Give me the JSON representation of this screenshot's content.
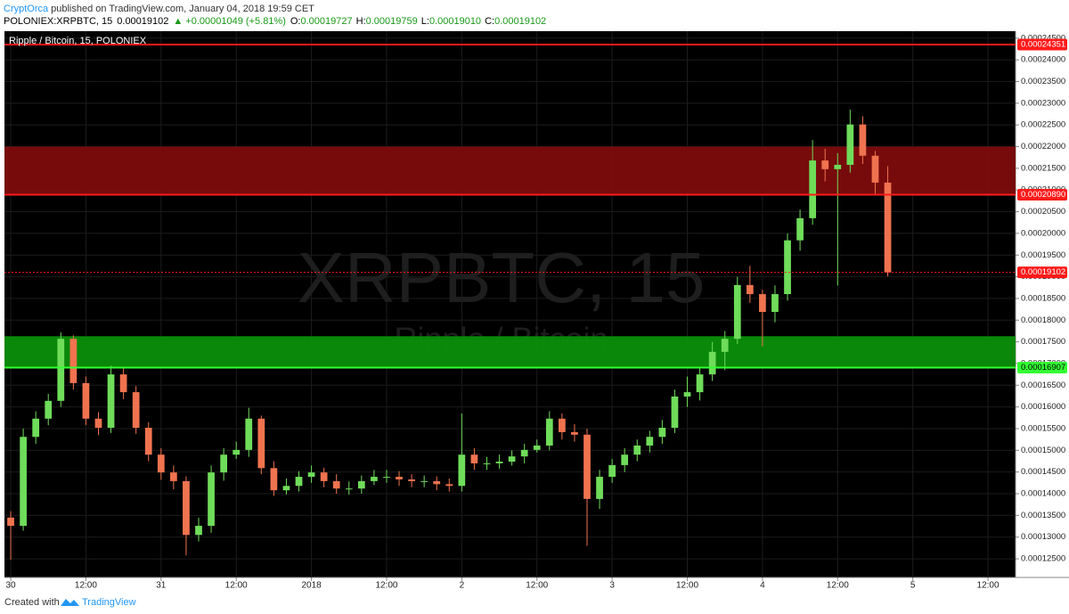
{
  "header": {
    "author": "CryptOrca",
    "published": "published on TradingView.com, January 04, 2018 19:59 CET"
  },
  "quote": {
    "symbol": "POLONIEX:XRPBTC, 15",
    "last": "0.00019102",
    "change": "▲ +0.00001049 (+5.81%)",
    "ohlc": [
      [
        "O:",
        "0.00019727"
      ],
      [
        "H:",
        "0.00019759"
      ],
      [
        "L:",
        "0.00019010"
      ],
      [
        "C:",
        "0.00019102"
      ]
    ]
  },
  "footer": {
    "created": "Created with",
    "brand": "TradingView"
  },
  "chart_data": {
    "type": "candlestick",
    "title": "Ripple / Bitcoin, 15, POLONIEX",
    "watermark": [
      "XRPBTC, 15",
      "Ripple / Bitcoin"
    ],
    "up_color": "#6fdc5a",
    "down_color": "#f0734f",
    "x": [
      0,
      2,
      4,
      6,
      8,
      10,
      12,
      14,
      16,
      18,
      20,
      22,
      24,
      26,
      28,
      30,
      32,
      34,
      36,
      38,
      40,
      42,
      44,
      46,
      48,
      50,
      52,
      54,
      56,
      58,
      60,
      62,
      64,
      66,
      68,
      70,
      72,
      74,
      76,
      78,
      80,
      82,
      84,
      86,
      88,
      90,
      92,
      94,
      96,
      98,
      100,
      102,
      104,
      106,
      108,
      110,
      112,
      114,
      116,
      118,
      120,
      122,
      124,
      126,
      128,
      130,
      132,
      134,
      136,
      138,
      140
    ],
    "open": [
      0.0001345,
      0.0001326,
      0.0001531,
      0.0001573,
      0.0001614,
      0.0001757,
      0.0001655,
      0.0001573,
      0.0001552,
      0.0001675,
      0.0001634,
      0.0001552,
      0.000149,
      0.0001449,
      0.0001429,
      0.0001305,
      0.0001326,
      0.0001449,
      0.000149,
      0.0001501,
      0.0001573,
      0.0001459,
      0.0001408,
      0.0001418,
      0.0001439,
      0.0001449,
      0.0001429,
      0.0001412,
      0.0001412,
      0.0001429,
      0.0001439,
      0.0001439,
      0.0001433,
      0.0001429,
      0.0001429,
      0.0001422,
      0.0001418,
      0.000149,
      0.000147,
      0.000147,
      0.0001474,
      0.0001486,
      0.0001501,
      0.0001511,
      0.0001573,
      0.0001542,
      0.0001536,
      0.0001388,
      0.0001439,
      0.0001466,
      0.000149,
      0.0001511,
      0.0001531,
      0.0001552,
      0.0001624,
      0.0001634,
      0.0001675,
      0.0001727,
      0.0001757,
      0.0001881,
      0.000186,
      0.0001819,
      0.000186,
      0.0001984,
      0.0002035,
      0.0002168,
      0.0002148,
      0.0002158,
      0.0002251,
      0.0002179,
      0.0002117
    ],
    "high": [
      0.000136,
      0.000155,
      0.000159,
      0.000163,
      0.0001772,
      0.0001765,
      0.000167,
      0.0001588,
      0.0001695,
      0.000169,
      0.0001648,
      0.0001565,
      0.0001505,
      0.0001465,
      0.000144,
      0.0001345,
      0.0001465,
      0.0001505,
      0.000152,
      0.0001598,
      0.000158,
      0.0001475,
      0.0001435,
      0.0001452,
      0.0001465,
      0.000146,
      0.0001445,
      0.0001428,
      0.0001442,
      0.0001455,
      0.0001455,
      0.0001452,
      0.0001445,
      0.0001442,
      0.000144,
      0.0001435,
      0.0001585,
      0.0001505,
      0.0001485,
      0.000149,
      0.00015,
      0.0001515,
      0.0001525,
      0.000159,
      0.0001585,
      0.000156,
      0.000155,
      0.0001455,
      0.000148,
      0.0001505,
      0.0001525,
      0.0001545,
      0.000157,
      0.000164,
      0.000167,
      0.000169,
      0.000175,
      0.0001775,
      0.00019,
      0.0001925,
      0.000187,
      0.000188,
      0.0002,
      0.0002055,
      0.0002215,
      0.0002195,
      0.0002185,
      0.0002285,
      0.000227,
      0.000219,
      0.0002155
    ],
    "low": [
      0.0001248,
      0.0001315,
      0.0001515,
      0.0001558,
      0.00016,
      0.000164,
      0.0001558,
      0.0001535,
      0.000154,
      0.0001618,
      0.0001538,
      0.0001475,
      0.0001432,
      0.000141,
      0.0001258,
      0.000129,
      0.000131,
      0.000143,
      0.000148,
      0.0001485,
      0.0001445,
      0.0001395,
      0.0001398,
      0.0001405,
      0.0001425,
      0.0001415,
      0.00014,
      0.0001398,
      0.00014,
      0.000142,
      0.0001425,
      0.0001418,
      0.0001415,
      0.0001415,
      0.0001408,
      0.0001405,
      0.0001405,
      0.0001455,
      0.0001455,
      0.0001458,
      0.0001465,
      0.000147,
      0.0001495,
      0.00015,
      0.0001525,
      0.000152,
      0.000128,
      0.0001365,
      0.0001425,
      0.000145,
      0.0001475,
      0.0001495,
      0.0001515,
      0.000154,
      0.00016,
      0.0001615,
      0.000166,
      0.0001685,
      0.0001745,
      0.000184,
      0.000174,
      0.0001795,
      0.0001845,
      0.000196,
      0.000202,
      0.000212,
      0.000188,
      0.000214,
      0.000216,
      0.000209,
      0.0001901
    ],
    "close": [
      0.0001326,
      0.0001531,
      0.0001573,
      0.0001614,
      0.0001757,
      0.0001655,
      0.0001573,
      0.0001552,
      0.0001675,
      0.0001634,
      0.0001552,
      0.000149,
      0.0001449,
      0.0001429,
      0.0001305,
      0.0001326,
      0.0001449,
      0.000149,
      0.0001501,
      0.0001573,
      0.0001459,
      0.0001408,
      0.0001418,
      0.0001439,
      0.0001449,
      0.0001429,
      0.0001412,
      0.0001412,
      0.0001429,
      0.0001439,
      0.0001439,
      0.0001433,
      0.0001429,
      0.0001429,
      0.0001422,
      0.0001418,
      0.000149,
      0.000147,
      0.000147,
      0.0001474,
      0.0001486,
      0.0001501,
      0.0001511,
      0.0001573,
      0.0001542,
      0.0001536,
      0.0001388,
      0.0001439,
      0.0001466,
      0.000149,
      0.0001511,
      0.0001531,
      0.0001552,
      0.0001624,
      0.0001634,
      0.0001675,
      0.0001727,
      0.0001757,
      0.0001881,
      0.000186,
      0.0001819,
      0.000186,
      0.0001984,
      0.0002035,
      0.0002168,
      0.0002148,
      0.0002158,
      0.0002251,
      0.0002179,
      0.0002117,
      0.000191
    ],
    "xlim": [
      -1,
      160.4
    ],
    "xticks": [
      {
        "value": 0,
        "label": "30"
      },
      {
        "value": 12,
        "label": "12:00"
      },
      {
        "value": 24,
        "label": "31"
      },
      {
        "value": 36,
        "label": "12:00"
      },
      {
        "value": 48,
        "label": "2018"
      },
      {
        "value": 60,
        "label": "12:00"
      },
      {
        "value": 72,
        "label": "2"
      },
      {
        "value": 84,
        "label": "12:00"
      },
      {
        "value": 96,
        "label": "3"
      },
      {
        "value": 108,
        "label": "12:00"
      },
      {
        "value": 120,
        "label": "4"
      },
      {
        "value": 132,
        "label": "12:00"
      },
      {
        "value": 144,
        "label": "5"
      },
      {
        "value": 156,
        "label": "12:00"
      }
    ],
    "ylim": [
      0.0001207,
      0.0002466
    ],
    "yticks": [
      {
        "value": 0.000125,
        "label": "0.00012500"
      },
      {
        "value": 0.00013,
        "label": "0.00013000"
      },
      {
        "value": 0.000135,
        "label": "0.00013500"
      },
      {
        "value": 0.00014,
        "label": "0.00014000"
      },
      {
        "value": 0.000145,
        "label": "0.00014500"
      },
      {
        "value": 0.00015,
        "label": "0.00015000"
      },
      {
        "value": 0.000155,
        "label": "0.00015500"
      },
      {
        "value": 0.00016,
        "label": "0.00016000"
      },
      {
        "value": 0.000165,
        "label": "0.00016500"
      },
      {
        "value": 0.00017,
        "label": "0.00017000"
      },
      {
        "value": 0.000175,
        "label": "0.00017500"
      },
      {
        "value": 0.00018,
        "label": "0.00018000"
      },
      {
        "value": 0.000185,
        "label": "0.00018500"
      },
      {
        "value": 0.00019,
        "label": "0.00019000"
      },
      {
        "value": 0.000195,
        "label": "0.00019500"
      },
      {
        "value": 0.0002,
        "label": "0.00020000"
      },
      {
        "value": 0.000205,
        "label": "0.00020500"
      },
      {
        "value": 0.00021,
        "label": "0.00021000"
      },
      {
        "value": 0.000215,
        "label": "0.00021500"
      },
      {
        "value": 0.00022,
        "label": "0.00022000"
      },
      {
        "value": 0.000225,
        "label": "0.00022500"
      },
      {
        "value": 0.00023,
        "label": "0.00023000"
      },
      {
        "value": 0.000235,
        "label": "0.00023500"
      },
      {
        "value": 0.00024,
        "label": "0.00024000"
      },
      {
        "value": 0.000245,
        "label": "0.00024500"
      }
    ],
    "grid": true,
    "zones": [
      {
        "from": 0.0002089,
        "to": 0.00022,
        "color": "#7d0c0c"
      },
      {
        "from": 0.00016907,
        "to": 0.0001763,
        "color": "#0b8f0b"
      }
    ],
    "levels": [
      {
        "value": 0.00024351,
        "label": "0.00024351",
        "color": "#ff1a1a",
        "text_color": "#ffffff",
        "style": "solid"
      },
      {
        "value": 0.0002089,
        "label": "0.00020890",
        "color": "#ff1a1a",
        "text_color": "#ffffff",
        "style": "solid"
      },
      {
        "value": 0.00019102,
        "label": "0.00019102",
        "color": "#ff1a1a",
        "text_color": "#ffffff",
        "style": "dotted"
      },
      {
        "value": 0.00016907,
        "label": "0.00016907",
        "color": "#33ff33",
        "text_color": "#000000",
        "style": "solid"
      }
    ]
  }
}
